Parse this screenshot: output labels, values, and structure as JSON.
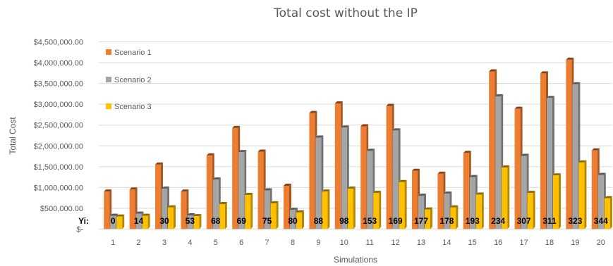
{
  "chart_data": {
    "type": "bar",
    "title": "Total cost without the IP",
    "xlabel": "Simulations",
    "ylabel": "Total Cost",
    "ylim": [
      0,
      4500000
    ],
    "yticks": [
      "$-",
      "$500,000.00",
      "$1,000,000.00",
      "$1,500,000.00",
      "$2,000,000.00",
      "$2,500,000.00",
      "$3,000,000.00",
      "$3,500,000.00",
      "$4,000,000.00",
      "$4,500,000.00"
    ],
    "grid": true,
    "legend_position": "top-left",
    "categories": [
      "1",
      "2",
      "3",
      "4",
      "5",
      "6",
      "7",
      "8",
      "9",
      "10",
      "11",
      "12",
      "13",
      "14",
      "15",
      "16",
      "17",
      "18",
      "19",
      "20"
    ],
    "series": [
      {
        "name": "Scenario 1",
        "color": "#ed7d31",
        "values": [
          900000,
          950000,
          1550000,
          900000,
          1770000,
          2430000,
          1860000,
          1040000,
          2790000,
          3020000,
          2470000,
          2960000,
          1400000,
          1330000,
          1830000,
          3790000,
          2890000,
          3740000,
          4070000,
          1890000
        ]
      },
      {
        "name": "Scenario 2",
        "color": "#a5a5a5",
        "values": [
          320000,
          370000,
          970000,
          330000,
          1190000,
          1850000,
          930000,
          460000,
          2200000,
          2440000,
          1880000,
          2370000,
          800000,
          850000,
          1250000,
          3190000,
          1760000,
          3150000,
          3480000,
          1300000
        ]
      },
      {
        "name": "Scenario 3",
        "color": "#ffc000",
        "values": [
          300000,
          320000,
          520000,
          310000,
          600000,
          820000,
          620000,
          400000,
          900000,
          970000,
          870000,
          1130000,
          470000,
          520000,
          830000,
          1480000,
          870000,
          1290000,
          1600000,
          740000
        ]
      }
    ],
    "annotation_label": "Yi:",
    "annotations": [
      "0",
      "14",
      "30",
      "53",
      "68",
      "69",
      "75",
      "80",
      "88",
      "98",
      "153",
      "169",
      "177",
      "178",
      "193",
      "234",
      "307",
      "311",
      "323",
      "344"
    ]
  }
}
